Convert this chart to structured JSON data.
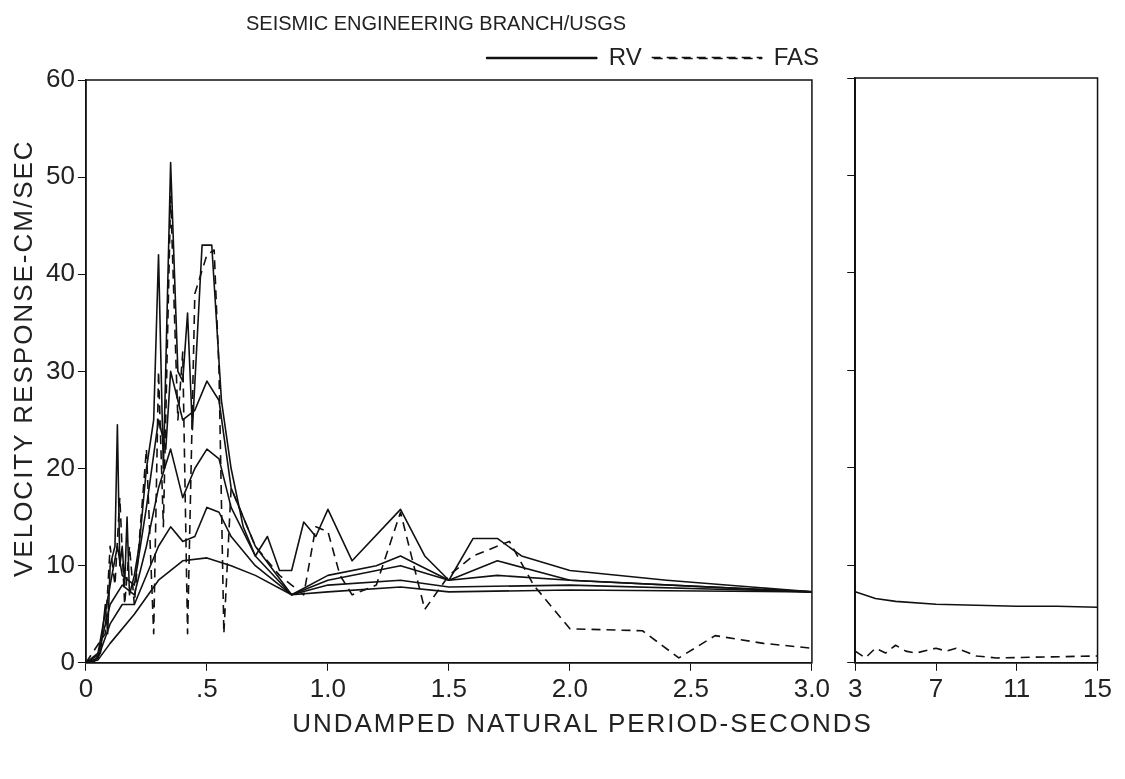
{
  "chart_data": [
    {
      "type": "line",
      "title": "SEISMIC ENGINEERING BRANCH/USGS",
      "xlabel": "UNDAMPED NATURAL PERIOD-SECONDS",
      "ylabel": "VELOCITY RESPONSE-CM/SEC",
      "xlim": [
        0,
        3
      ],
      "ylim": [
        0,
        60
      ],
      "xticks": [
        0,
        {
          "value": 0.5,
          "label": ".5"
        },
        {
          "value": 1,
          "label": "1.0"
        },
        {
          "value": 1.5,
          "label": "1.5"
        },
        {
          "value": 2,
          "label": "2.0"
        },
        {
          "value": 2.5,
          "label": "2.5"
        },
        {
          "value": 3,
          "label": "3.0"
        }
      ],
      "yticks": [
        0,
        10,
        20,
        30,
        40,
        50,
        60
      ],
      "grid": false,
      "legend": "top right",
      "marker": "none",
      "series": [
        {
          "name": "RV",
          "color": "#111111",
          "line_style": "solid",
          "x": [
            0,
            0.03,
            0.06,
            0.08,
            0.09,
            0.1,
            0.12,
            0.13,
            0.14,
            0.15,
            0.16,
            0.17,
            0.18,
            0.2,
            0.22,
            0.25,
            0.28,
            0.3,
            0.32,
            0.35,
            0.38,
            0.4,
            0.42,
            0.44,
            0.48,
            0.52,
            0.56,
            0.6,
            0.65,
            0.7,
            0.75,
            0.8,
            0.85,
            0.9,
            0.95,
            1,
            1.1,
            1.3,
            1.4,
            1.5,
            1.6,
            1.7,
            1.8,
            2,
            2.4,
            3
          ],
          "values": [
            0,
            0,
            1,
            6,
            3,
            10,
            12,
            24.5,
            10,
            12,
            8,
            15,
            7,
            9,
            12,
            20,
            25,
            42,
            20,
            51.5,
            30,
            29,
            36,
            24,
            43,
            43,
            27,
            20,
            14,
            11,
            13,
            9.5,
            9.5,
            14.5,
            13,
            15.8,
            10.5,
            15.8,
            11,
            8.5,
            12.8,
            12.8,
            11,
            9.5,
            8.5,
            7.3
          ]
        },
        {
          "color": "#111111",
          "line_style": "solid",
          "x": [
            0,
            0.05,
            0.1,
            0.13,
            0.15,
            0.2,
            0.25,
            0.3,
            0.33,
            0.35,
            0.4,
            0.45,
            0.5,
            0.55,
            0.6,
            0.7,
            0.85,
            1,
            1.2,
            1.3,
            1.5,
            1.7,
            2,
            3
          ],
          "values": [
            0,
            1,
            8,
            12,
            9,
            8,
            16,
            25,
            22,
            30,
            25,
            26,
            29,
            27,
            18,
            12,
            7,
            9,
            10,
            11,
            8.5,
            10.5,
            8.5,
            7.3
          ]
        },
        {
          "color": "#111111",
          "line_style": "solid",
          "x": [
            0,
            0.05,
            0.1,
            0.15,
            0.2,
            0.25,
            0.3,
            0.35,
            0.4,
            0.45,
            0.5,
            0.55,
            0.6,
            0.7,
            0.85,
            1,
            1.3,
            1.5,
            1.7,
            2,
            3
          ],
          "values": [
            0,
            0.8,
            6,
            8,
            7,
            12,
            18,
            22,
            17,
            20,
            22,
            21,
            16,
            11,
            7,
            8.5,
            10,
            8.5,
            9,
            8.5,
            7.3
          ]
        },
        {
          "color": "#111111",
          "line_style": "solid",
          "x": [
            0,
            0.05,
            0.1,
            0.15,
            0.2,
            0.3,
            0.35,
            0.4,
            0.45,
            0.5,
            0.55,
            0.6,
            0.7,
            0.85,
            1,
            1.3,
            1.5,
            2,
            3
          ],
          "values": [
            0,
            0.5,
            4,
            6,
            6,
            12,
            14,
            12.5,
            13,
            16,
            15.5,
            13,
            10,
            7,
            8,
            8.5,
            7.8,
            8,
            7.3
          ]
        },
        {
          "color": "#111111",
          "line_style": "solid",
          "x": [
            0,
            0.05,
            0.1,
            0.2,
            0.3,
            0.4,
            0.5,
            0.6,
            0.7,
            0.85,
            1,
            1.3,
            1.5,
            2,
            3
          ],
          "values": [
            0,
            0.3,
            2,
            5,
            8.5,
            10.5,
            10.8,
            10,
            9,
            7,
            7.3,
            7.8,
            7.3,
            7.5,
            7.3
          ]
        },
        {
          "name": "FAS",
          "color": "#111111",
          "line_style": "dashed",
          "x": [
            0,
            0.08,
            0.1,
            0.12,
            0.14,
            0.16,
            0.18,
            0.2,
            0.25,
            0.28,
            0.3,
            0.32,
            0.35,
            0.38,
            0.4,
            0.42,
            0.45,
            0.5,
            0.53,
            0.55,
            0.57,
            0.6,
            0.7,
            0.8,
            0.85,
            0.9,
            0.95,
            1,
            1.05,
            1.1,
            1.2,
            1.3,
            1.4,
            1.5,
            1.6,
            1.75,
            1.85,
            2,
            2.3,
            2.45,
            2.6,
            2.8,
            3
          ],
          "values": [
            0,
            3,
            12,
            8,
            17,
            6,
            12,
            6,
            22,
            3,
            30,
            14,
            48,
            25,
            32,
            3,
            38,
            42,
            42.5,
            30,
            3,
            18,
            12,
            9,
            8,
            7,
            14,
            13.5,
            9,
            7,
            8,
            15.5,
            5.5,
            9,
            11,
            12.5,
            8,
            3.5,
            3.3,
            0.5,
            2.8,
            2,
            1.5
          ]
        }
      ]
    },
    {
      "type": "line",
      "xlim": [
        3,
        15
      ],
      "ylim": [
        0,
        60
      ],
      "xticks": [
        3,
        7,
        11,
        15
      ],
      "yticks": [
        {
          "value": 0,
          "label": null
        },
        {
          "value": 10,
          "label": null
        },
        {
          "value": 20,
          "label": null
        },
        {
          "value": 30,
          "label": null
        },
        {
          "value": 40,
          "label": null
        },
        {
          "value": 50,
          "label": null
        },
        {
          "value": 60,
          "label": null
        }
      ],
      "tick_labels": "x",
      "grid": false,
      "marker": "none",
      "series": [
        {
          "color": "#111111",
          "line_style": "solid",
          "x": [
            3,
            4,
            5,
            7,
            9,
            11,
            13,
            15
          ],
          "values": [
            7.3,
            6.6,
            6.3,
            6,
            5.9,
            5.8,
            5.8,
            5.7
          ]
        },
        {
          "color": "#111111",
          "line_style": "dashed",
          "x": [
            3,
            3.5,
            4,
            4.5,
            5,
            5.5,
            6,
            7,
            7.5,
            8,
            9,
            10,
            15
          ],
          "values": [
            1.2,
            0.5,
            1.5,
            1,
            1.8,
            1.2,
            1,
            1.5,
            1.2,
            1.5,
            0.7,
            0.5,
            0.7
          ]
        }
      ]
    }
  ]
}
